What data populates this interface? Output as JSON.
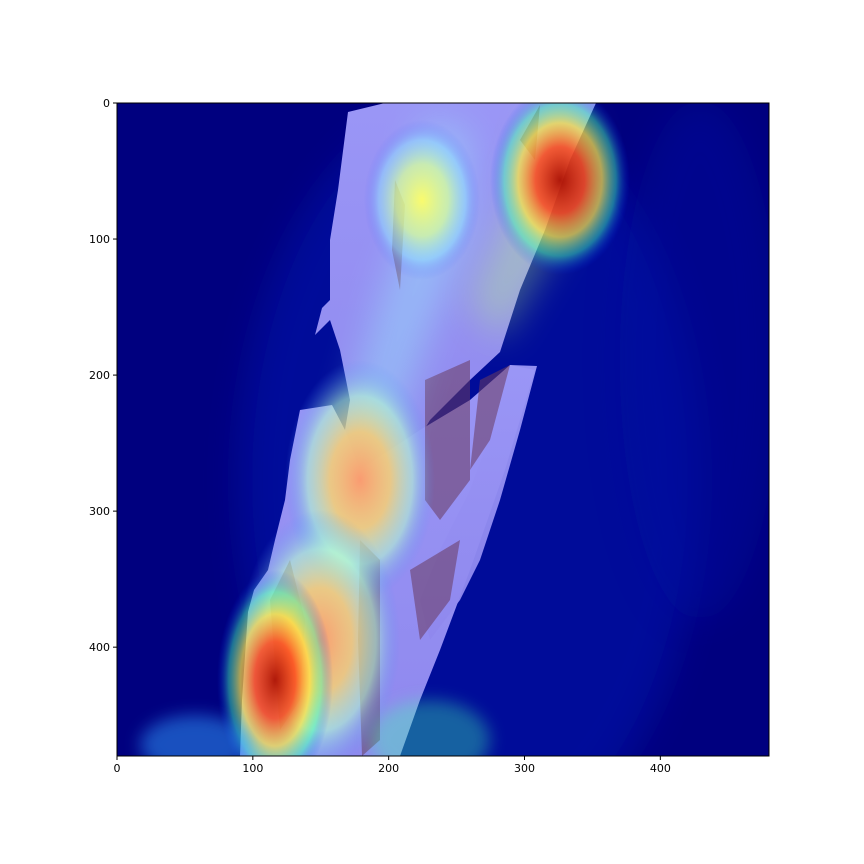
{
  "figure": {
    "type": "heatmap-overlay",
    "description_kind": "image",
    "colormap": "jet",
    "colors": {
      "low": "#00007f",
      "mid": "#7f7fff",
      "high_yellow": "#ffff55",
      "high_orange": "#ff9955",
      "peak": "#aa1100"
    }
  },
  "chart_data": {
    "type": "heatmap",
    "xlim": [
      0,
      480
    ],
    "ylim": [
      480,
      0
    ],
    "x_ticks": [
      "0",
      "100",
      "200",
      "300",
      "400"
    ],
    "y_ticks": [
      "0",
      "100",
      "200",
      "300",
      "400"
    ],
    "x_tick_values": [
      0,
      100,
      200,
      300,
      400
    ],
    "y_tick_values": [
      0,
      100,
      200,
      300,
      400
    ],
    "hotspots": [
      {
        "name": "upper-right-peak",
        "x": 330,
        "y": 55,
        "level": 1.0
      },
      {
        "name": "upper-center",
        "x": 225,
        "y": 70,
        "level": 0.75
      },
      {
        "name": "middle-left-peak",
        "x": 180,
        "y": 275,
        "level": 0.9
      },
      {
        "name": "lower-left-peak",
        "x": 120,
        "y": 450,
        "level": 1.0
      },
      {
        "name": "lower-center",
        "x": 150,
        "y": 420,
        "level": 0.8
      }
    ]
  }
}
